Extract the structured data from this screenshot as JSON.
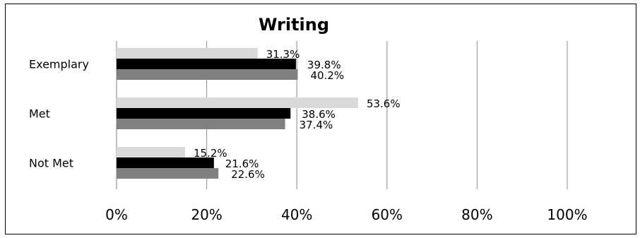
{
  "chart_data": {
    "type": "bar",
    "orientation": "horizontal",
    "title": "Writing",
    "categories": [
      "Exemplary",
      "Met",
      "Not Met"
    ],
    "xlim": [
      0,
      100
    ],
    "x_ticks": [
      "0%",
      "20%",
      "40%",
      "60%",
      "80%",
      "100%"
    ],
    "grid": true,
    "legend": "none",
    "series": [
      {
        "values": [
          31.3,
          53.6,
          15.2
        ],
        "labels": [
          "31.3%",
          "53.6%",
          "15.2%"
        ],
        "color": "#d9d9d9"
      },
      {
        "values": [
          39.8,
          38.6,
          21.6
        ],
        "labels": [
          "39.8%",
          "38.6%",
          "21.6%"
        ],
        "color": "#000000"
      },
      {
        "values": [
          40.2,
          37.4,
          22.6
        ],
        "labels": [
          "40.2%",
          "37.4%",
          "22.6%"
        ],
        "color": "#808080"
      }
    ]
  }
}
